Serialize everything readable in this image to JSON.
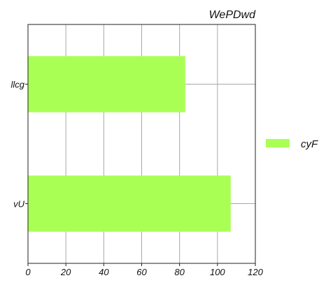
{
  "chart_data": {
    "type": "bar",
    "orientation": "horizontal",
    "title": "WePDwd",
    "xlabel": "",
    "ylabel": "",
    "categories": [
      "llcg",
      "vU"
    ],
    "series": [
      {
        "name": "cyF",
        "values": [
          83,
          107
        ],
        "color": "#aaff55"
      }
    ],
    "xlim": [
      0,
      120
    ],
    "xticks": [
      0,
      20,
      40,
      60,
      80,
      100,
      120
    ],
    "grid": true,
    "legend_position": "right"
  }
}
